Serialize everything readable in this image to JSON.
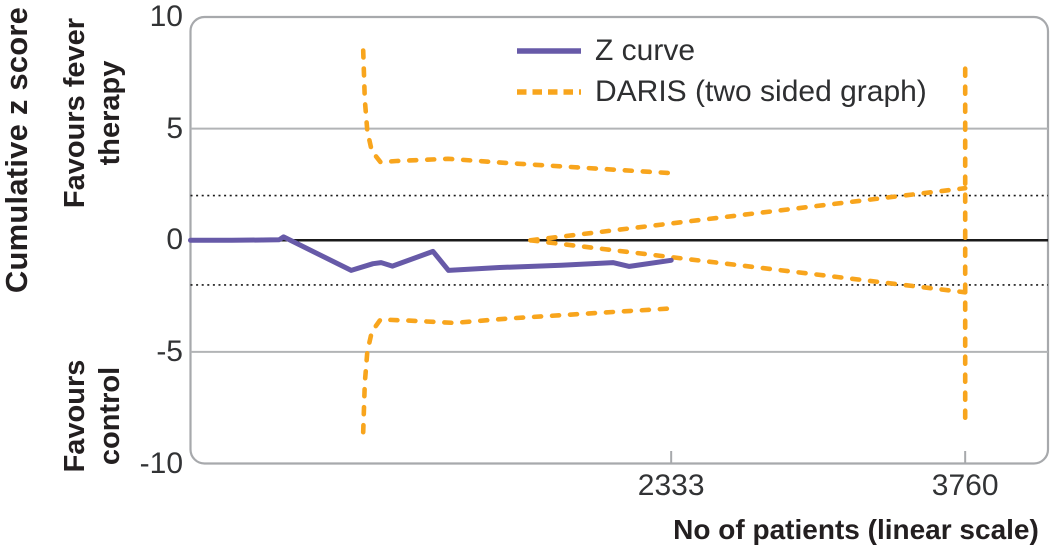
{
  "style": {
    "border_color": "#a7a9ac",
    "grid_color": "#b2b4b6",
    "zero_line_color": "#1a1a1a",
    "dotted_line_color": "#1a1a1a",
    "text_color": "#323335",
    "title_color": "#231f20"
  },
  "chart_data": {
    "type": "line",
    "title": "",
    "xlabel": "No of patients (linear scale)",
    "ylabel": "Cumulative z score",
    "y_region_labels": {
      "positive": [
        "Favours fever",
        "therapy"
      ],
      "negative": [
        "Favours",
        "control"
      ]
    },
    "x_scale": "linear",
    "xlim": [
      0,
      4162
    ],
    "ylim": [
      -10,
      10
    ],
    "x_ticks": [
      2333,
      3760
    ],
    "y_ticks": [
      10,
      5,
      0,
      -5,
      -10
    ],
    "reference_lines": {
      "solid_gray_y": [
        5,
        -5
      ],
      "zero_y": 0,
      "dotted_significance_y": [
        2,
        -2
      ]
    },
    "legend_position": "top-center-inside",
    "grid": "horizontal-only",
    "series": [
      {
        "name": "Z curve",
        "color": "#675aa8",
        "style": "solid",
        "points": [
          [
            0,
            0
          ],
          [
            200,
            0
          ],
          [
            430,
            0.02
          ],
          [
            452,
            0.15
          ],
          [
            780,
            -1.35
          ],
          [
            886,
            -1.05
          ],
          [
            925,
            -1.0
          ],
          [
            980,
            -1.16
          ],
          [
            1177,
            -0.5
          ],
          [
            1252,
            -1.35
          ],
          [
            1500,
            -1.22
          ],
          [
            1800,
            -1.12
          ],
          [
            2050,
            -1.0
          ],
          [
            2130,
            -1.17
          ],
          [
            2333,
            -0.9
          ]
        ]
      },
      {
        "name": "DARIS (two sided graph)",
        "color": "#f8a51d",
        "style": "dashed",
        "segments": {
          "upper_monitoring_boundary": [
            [
              838,
              8.5
            ],
            [
              846,
              6.3
            ],
            [
              858,
              4.9
            ],
            [
              880,
              4.0
            ],
            [
              922,
              3.5
            ],
            [
              1000,
              3.55
            ],
            [
              1250,
              3.65
            ],
            [
              1550,
              3.45
            ],
            [
              1900,
              3.25
            ],
            [
              2345,
              3.0
            ]
          ],
          "lower_monitoring_boundary": [
            [
              838,
              -8.6
            ],
            [
              846,
              -6.4
            ],
            [
              858,
              -5.0
            ],
            [
              880,
              -4.1
            ],
            [
              922,
              -3.55
            ],
            [
              1060,
              -3.6
            ],
            [
              1280,
              -3.7
            ],
            [
              1550,
              -3.5
            ],
            [
              1900,
              -3.3
            ],
            [
              2345,
              -3.05
            ]
          ],
          "futility_upper": [
            [
              1650,
              0
            ],
            [
              3760,
              2.33
            ]
          ],
          "futility_lower": [
            [
              1650,
              0
            ],
            [
              3760,
              -2.33
            ]
          ],
          "required_information_size_line": [
            [
              3760,
              -7.95
            ],
            [
              3760,
              7.95
            ]
          ]
        }
      }
    ]
  }
}
